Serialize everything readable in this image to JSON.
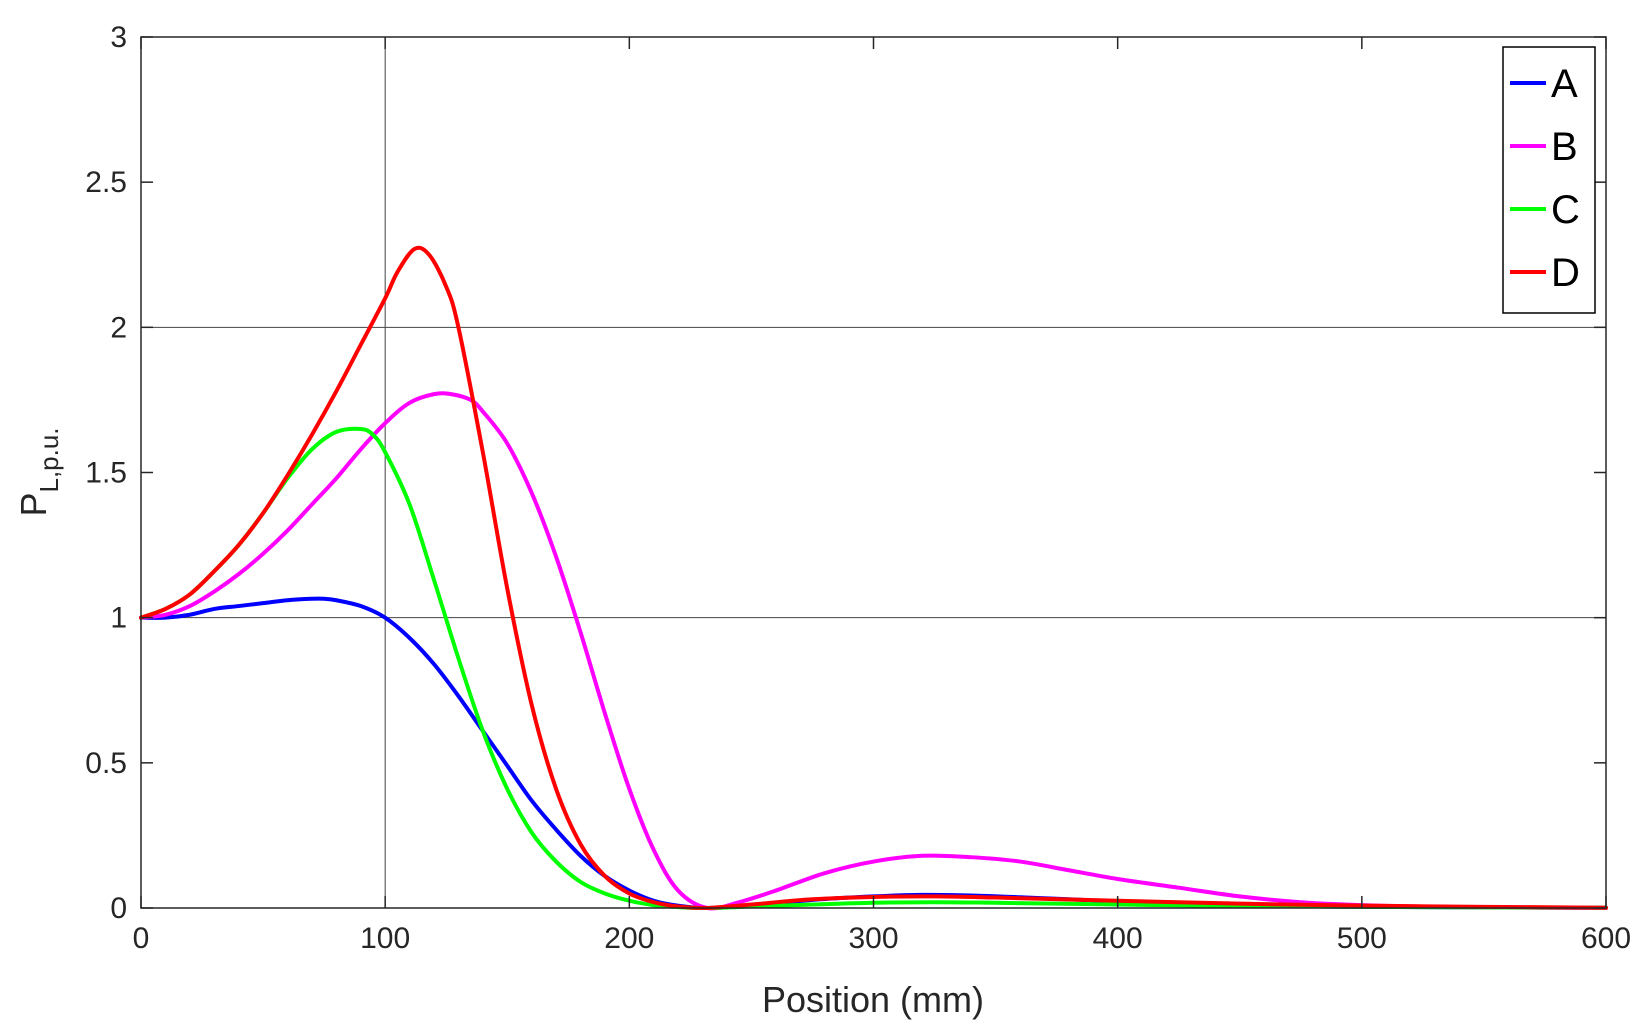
{
  "chart_data": {
    "type": "line",
    "xlabel": "Position (mm)",
    "ylabel_main": "P",
    "ylabel_sub": "L,p.u.",
    "xlim": [
      0,
      600
    ],
    "ylim": [
      0,
      3
    ],
    "x_ticks": [
      0,
      100,
      200,
      300,
      400,
      500,
      600
    ],
    "x_tick_labels": [
      "0",
      "100",
      "200",
      "300",
      "400",
      "500",
      "600"
    ],
    "y_ticks": [
      0,
      0.5,
      1,
      1.5,
      2,
      2.5,
      3
    ],
    "y_tick_labels": [
      "0",
      "0.5",
      "1",
      "1.5",
      "2",
      "2.5",
      "3"
    ],
    "reference_lines": {
      "horizontal": [
        1,
        2
      ],
      "vertical": [
        100
      ]
    },
    "legend_position": "top-right",
    "series": [
      {
        "name": "A",
        "color": "#0000ff",
        "x": [
          0,
          10,
          20,
          30,
          40,
          50,
          60,
          70,
          75,
          80,
          90,
          100,
          110,
          120,
          130,
          140,
          150,
          160,
          170,
          180,
          190,
          200,
          210,
          220,
          232,
          250,
          275,
          300,
          320,
          340,
          360,
          380,
          400,
          425,
          450,
          475,
          500,
          550,
          600
        ],
        "y": [
          1.0,
          1.0,
          1.01,
          1.03,
          1.04,
          1.05,
          1.06,
          1.065,
          1.065,
          1.06,
          1.04,
          1.0,
          0.93,
          0.84,
          0.73,
          0.61,
          0.49,
          0.37,
          0.27,
          0.18,
          0.11,
          0.06,
          0.025,
          0.008,
          0.0,
          0.008,
          0.028,
          0.04,
          0.045,
          0.043,
          0.037,
          0.03,
          0.022,
          0.015,
          0.01,
          0.006,
          0.004,
          0.002,
          0.001
        ]
      },
      {
        "name": "B",
        "color": "#ff00ff",
        "x": [
          0,
          10,
          20,
          30,
          40,
          50,
          60,
          70,
          80,
          90,
          100,
          110,
          120,
          127,
          135,
          140,
          150,
          160,
          170,
          180,
          190,
          200,
          210,
          220,
          232,
          245,
          260,
          280,
          300,
          320,
          340,
          360,
          380,
          400,
          425,
          450,
          475,
          500,
          525,
          550,
          600
        ],
        "y": [
          1.0,
          1.01,
          1.04,
          1.09,
          1.15,
          1.22,
          1.3,
          1.39,
          1.48,
          1.58,
          1.67,
          1.74,
          1.77,
          1.77,
          1.75,
          1.71,
          1.6,
          1.43,
          1.21,
          0.95,
          0.67,
          0.41,
          0.2,
          0.06,
          0.0,
          0.02,
          0.06,
          0.12,
          0.16,
          0.18,
          0.175,
          0.16,
          0.13,
          0.1,
          0.07,
          0.04,
          0.02,
          0.01,
          0.005,
          0.002,
          0.0
        ]
      },
      {
        "name": "C",
        "color": "#00ff00",
        "x": [
          0,
          10,
          20,
          30,
          40,
          50,
          60,
          70,
          80,
          90,
          95,
          100,
          110,
          120,
          130,
          140,
          150,
          160,
          170,
          180,
          190,
          200,
          210,
          220,
          232,
          250,
          275,
          300,
          325,
          350,
          400,
          450,
          500,
          550,
          600
        ],
        "y": [
          1.0,
          1.03,
          1.08,
          1.16,
          1.25,
          1.36,
          1.48,
          1.58,
          1.64,
          1.65,
          1.63,
          1.57,
          1.39,
          1.13,
          0.86,
          0.61,
          0.41,
          0.26,
          0.16,
          0.09,
          0.05,
          0.025,
          0.01,
          0.003,
          0.0,
          0.005,
          0.012,
          0.018,
          0.02,
          0.018,
          0.012,
          0.007,
          0.004,
          0.002,
          0.001
        ]
      },
      {
        "name": "D",
        "color": "#ff0000",
        "x": [
          0,
          10,
          20,
          30,
          40,
          50,
          60,
          70,
          80,
          90,
          100,
          105,
          112,
          118,
          125,
          130,
          140,
          150,
          160,
          170,
          180,
          190,
          200,
          210,
          220,
          232,
          250,
          275,
          300,
          325,
          350,
          400,
          450,
          500,
          550,
          600
        ],
        "y": [
          1.0,
          1.03,
          1.08,
          1.16,
          1.25,
          1.36,
          1.49,
          1.63,
          1.78,
          1.94,
          2.1,
          2.19,
          2.27,
          2.25,
          2.14,
          2.0,
          1.57,
          1.1,
          0.7,
          0.41,
          0.22,
          0.11,
          0.05,
          0.02,
          0.005,
          0.0,
          0.012,
          0.03,
          0.038,
          0.04,
          0.036,
          0.025,
          0.015,
          0.008,
          0.004,
          0.001
        ]
      }
    ]
  }
}
